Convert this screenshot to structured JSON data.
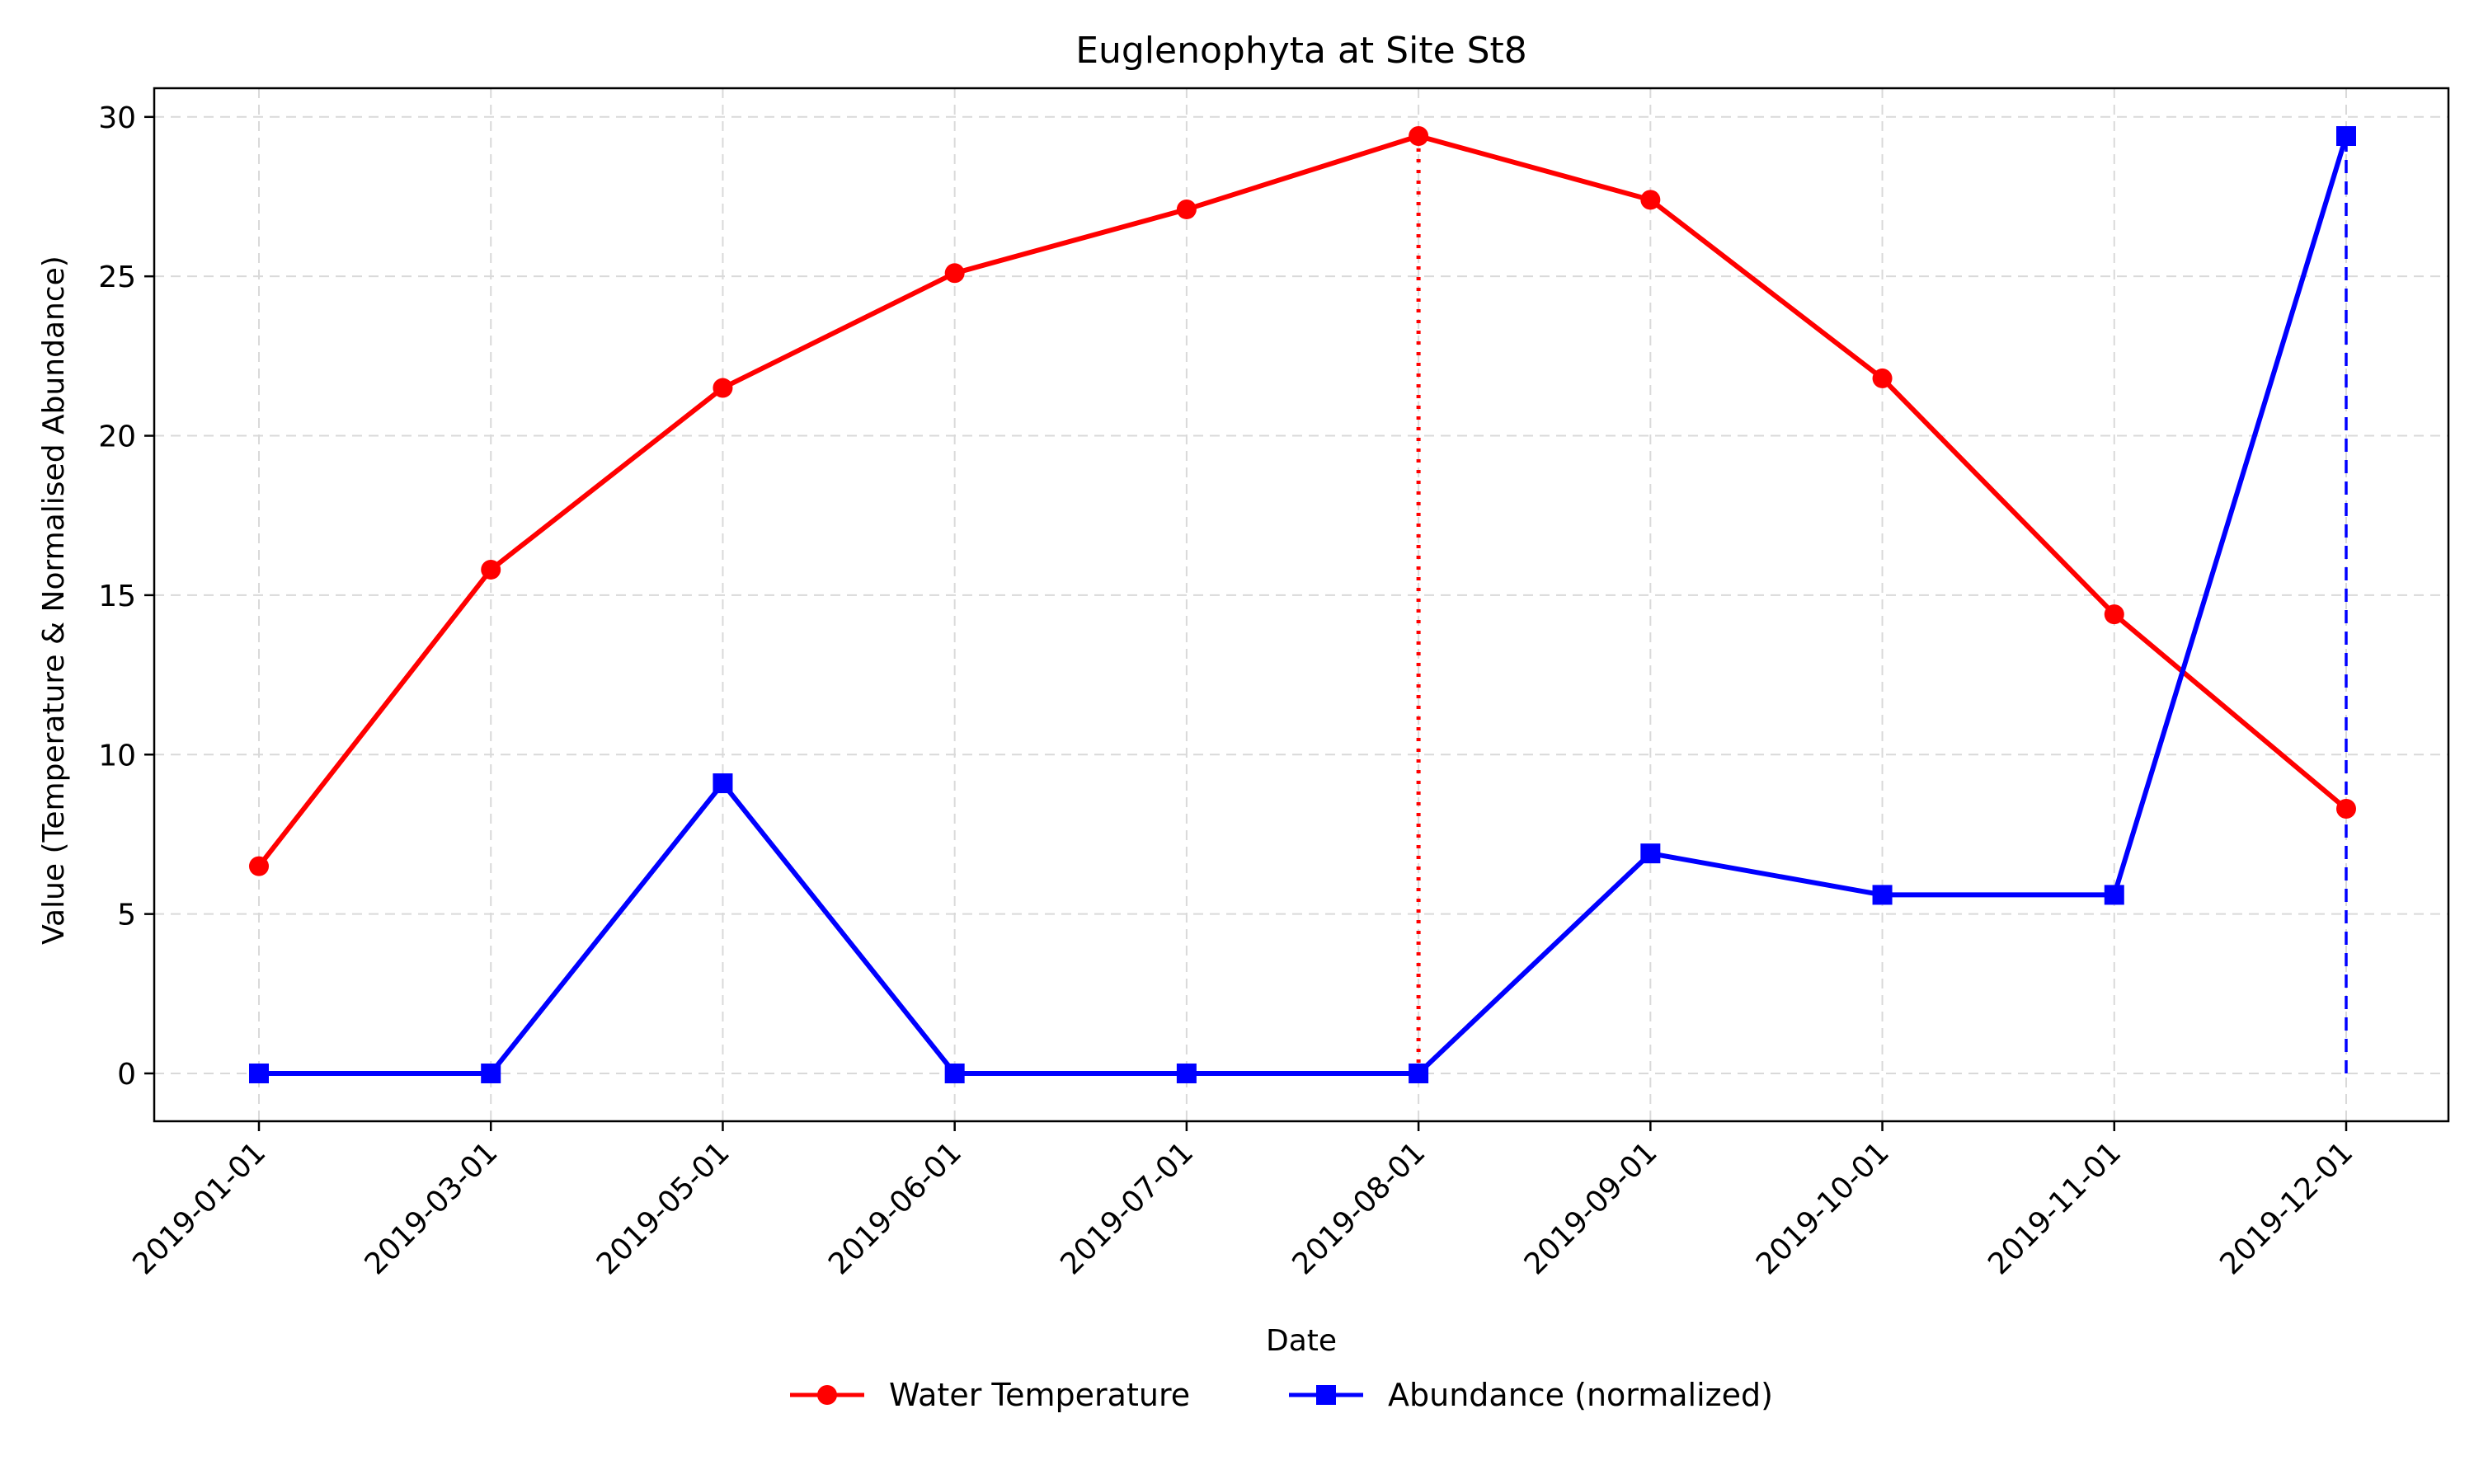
{
  "chart_data": {
    "type": "line",
    "title": "Euglenophyta at Site St8",
    "xlabel": "Date",
    "ylabel": "Value (Temperature & Normalised Abundance)",
    "categories": [
      "2019-01-01",
      "2019-03-01",
      "2019-05-01",
      "2019-06-01",
      "2019-07-01",
      "2019-08-01",
      "2019-09-01",
      "2019-10-01",
      "2019-11-01",
      "2019-12-01"
    ],
    "yticks": [
      0,
      5,
      10,
      15,
      20,
      25,
      30
    ],
    "ylim": [
      -1.5,
      30.9
    ],
    "grid": true,
    "legend_position": "bottom-center",
    "series": [
      {
        "name": "Water Temperature",
        "color": "#ff0000",
        "marker": "circle",
        "values": [
          6.5,
          15.8,
          21.5,
          25.1,
          27.1,
          29.4,
          27.4,
          21.8,
          14.4,
          8.3
        ]
      },
      {
        "name": "Abundance (normalized)",
        "color": "#0000ff",
        "marker": "square",
        "values": [
          0,
          0,
          9.1,
          0,
          0,
          0,
          6.9,
          5.6,
          5.6,
          29.4
        ]
      }
    ],
    "annotations": [
      {
        "type": "vline",
        "x": "2019-08-01",
        "from": 0,
        "to": 29.4,
        "color": "#ff0000",
        "style": "dotted"
      },
      {
        "type": "vline",
        "x": "2019-12-01",
        "from": 0,
        "to": 29.4,
        "color": "#0000ff",
        "style": "dashed"
      }
    ]
  }
}
